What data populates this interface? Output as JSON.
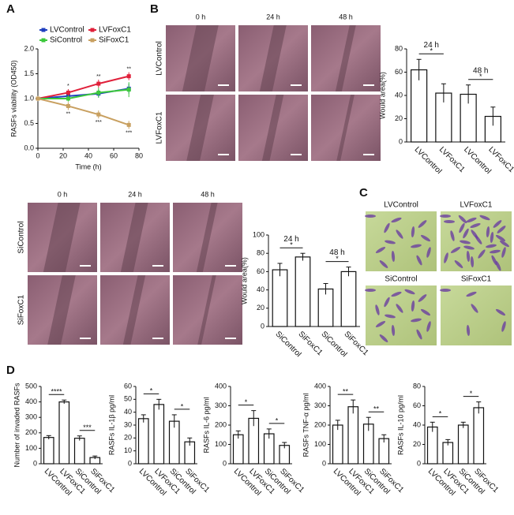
{
  "panel_labels": [
    "A",
    "B",
    "C",
    "D"
  ],
  "images": {
    "wound_lv": {
      "columns": [
        "0 h",
        "24 h",
        "48 h"
      ],
      "rows": [
        "LVControl",
        "LVFoxC1"
      ]
    },
    "wound_si": {
      "columns": [
        "0 h",
        "24 h",
        "48 h"
      ],
      "rows": [
        "SiControl",
        "SiFoxC1"
      ]
    },
    "transwell": {
      "labels": [
        "LVControl",
        "LVFoxC1",
        "SiControl",
        "SiFoxC1"
      ]
    }
  },
  "chart_data": [
    {
      "type": "line",
      "xlabel": "Time (h)",
      "ylabel": "RASFs viability (OD450)",
      "x": [
        0,
        24,
        48,
        72
      ],
      "xlim": [
        0,
        80
      ],
      "xticks": [
        0,
        20,
        40,
        60,
        80
      ],
      "ylim": [
        0,
        2
      ],
      "yticks": [
        {
          "value": 0,
          "label": "0.0"
        },
        0.5,
        {
          "value": 1,
          "label": "1.0"
        },
        1.5,
        {
          "value": 2,
          "label": "2.0"
        }
      ],
      "series": [
        {
          "name": "LVControl",
          "color": "#1f3fbf",
          "values": [
            1.0,
            1.05,
            1.1,
            1.2
          ],
          "errors": [
            0.05,
            0.06,
            0.08,
            0.1
          ],
          "point_labels": [
            null,
            null,
            null,
            null
          ]
        },
        {
          "name": "LVFoxC1",
          "color": "#e0203a",
          "values": [
            1.0,
            1.12,
            1.3,
            1.45
          ],
          "errors": [
            0.05,
            0.07,
            0.08,
            0.08
          ],
          "point_labels": [
            null,
            "*",
            "**",
            "**"
          ]
        },
        {
          "name": "SiControl",
          "color": "#3cc83c",
          "values": [
            1.0,
            1.0,
            1.12,
            1.18
          ],
          "errors": [
            0.05,
            0.06,
            0.1,
            0.15
          ],
          "point_labels": [
            null,
            null,
            null,
            null
          ]
        },
        {
          "name": "SiFoxC1",
          "color": "#c8a060",
          "values": [
            1.0,
            0.85,
            0.68,
            0.47
          ],
          "errors": [
            0.05,
            0.08,
            0.08,
            0.08
          ],
          "point_labels": [
            null,
            "**",
            "***",
            "***"
          ]
        }
      ]
    },
    {
      "type": "bar",
      "ylabel": "Would area(%)",
      "categories": [
        "LVControl",
        "LVFoxC1",
        "LVControl",
        "LVFoxC1"
      ],
      "values": [
        62,
        42,
        41,
        22
      ],
      "errors": [
        9,
        8,
        8,
        8
      ],
      "ylim": [
        0,
        80
      ],
      "yticks": [
        0,
        20,
        40,
        60,
        80
      ],
      "significance": [
        "*",
        "*"
      ],
      "group_labels": [
        "24 h",
        "48 h"
      ]
    },
    {
      "type": "bar",
      "ylabel": "Would area(%)",
      "categories": [
        "SiControl",
        "SiFoxC1",
        "SiControl",
        "SiFoxC1"
      ],
      "values": [
        62,
        76,
        41,
        60
      ],
      "errors": [
        7,
        4,
        6,
        5
      ],
      "ylim": [
        0,
        100
      ],
      "yticks": [
        0,
        20,
        40,
        60,
        80,
        100
      ],
      "significance": [
        "*",
        "*"
      ],
      "group_labels": [
        "24 h",
        "48 h"
      ]
    },
    {
      "type": "bar",
      "ylabel": "Number of  invaded RASFs",
      "categories": [
        "LVControl",
        "LVFoxC1",
        "SiControl",
        "SiFoxC1"
      ],
      "values": [
        170,
        400,
        165,
        40
      ],
      "errors": [
        12,
        12,
        15,
        10
      ],
      "ylim": [
        0,
        500
      ],
      "yticks": [
        0,
        100,
        200,
        300,
        400,
        500
      ],
      "significance": [
        "****",
        "***"
      ]
    },
    {
      "type": "bar",
      "ylabel": "RASFs IL-1β pg/ml",
      "categories": [
        "LVControl",
        "LVFoxC1",
        "SiControl",
        "SiFoxC1"
      ],
      "values": [
        35,
        46,
        33,
        17
      ],
      "errors": [
        3,
        4,
        5,
        3
      ],
      "ylim": [
        0,
        60
      ],
      "yticks": [
        0,
        10,
        20,
        30,
        40,
        50,
        60
      ],
      "significance": [
        "*",
        "*"
      ]
    },
    {
      "type": "bar",
      "ylabel": "RASFs IL-6 pg/ml",
      "categories": [
        "LVControl",
        "LVFoxC1",
        "SiControl",
        "SiFoxC1"
      ],
      "values": [
        150,
        235,
        155,
        95
      ],
      "errors": [
        20,
        40,
        25,
        15
      ],
      "ylim": [
        0,
        400
      ],
      "yticks": [
        0,
        100,
        200,
        300,
        400
      ],
      "significance": [
        "*",
        "*"
      ]
    },
    {
      "type": "bar",
      "ylabel": "RASFs TNF-α pg/ml",
      "categories": [
        "LVControl",
        "LVFoxC1",
        "SiControl",
        "SiFoxC1"
      ],
      "values": [
        200,
        295,
        205,
        130
      ],
      "errors": [
        25,
        35,
        35,
        20
      ],
      "ylim": [
        0,
        400
      ],
      "yticks": [
        0,
        100,
        200,
        300,
        400
      ],
      "significance": [
        "**",
        "**"
      ]
    },
    {
      "type": "bar",
      "ylabel": "RASFs IL-10 pg/ml",
      "categories": [
        "LVControl",
        "LVFoxC1",
        "SiControl",
        "SiFoxC1"
      ],
      "values": [
        38,
        22,
        40,
        58
      ],
      "errors": [
        5,
        3,
        3,
        6
      ],
      "ylim": [
        0,
        80
      ],
      "yticks": [
        0,
        20,
        40,
        60,
        80
      ],
      "significance": [
        "*",
        "*"
      ]
    }
  ]
}
